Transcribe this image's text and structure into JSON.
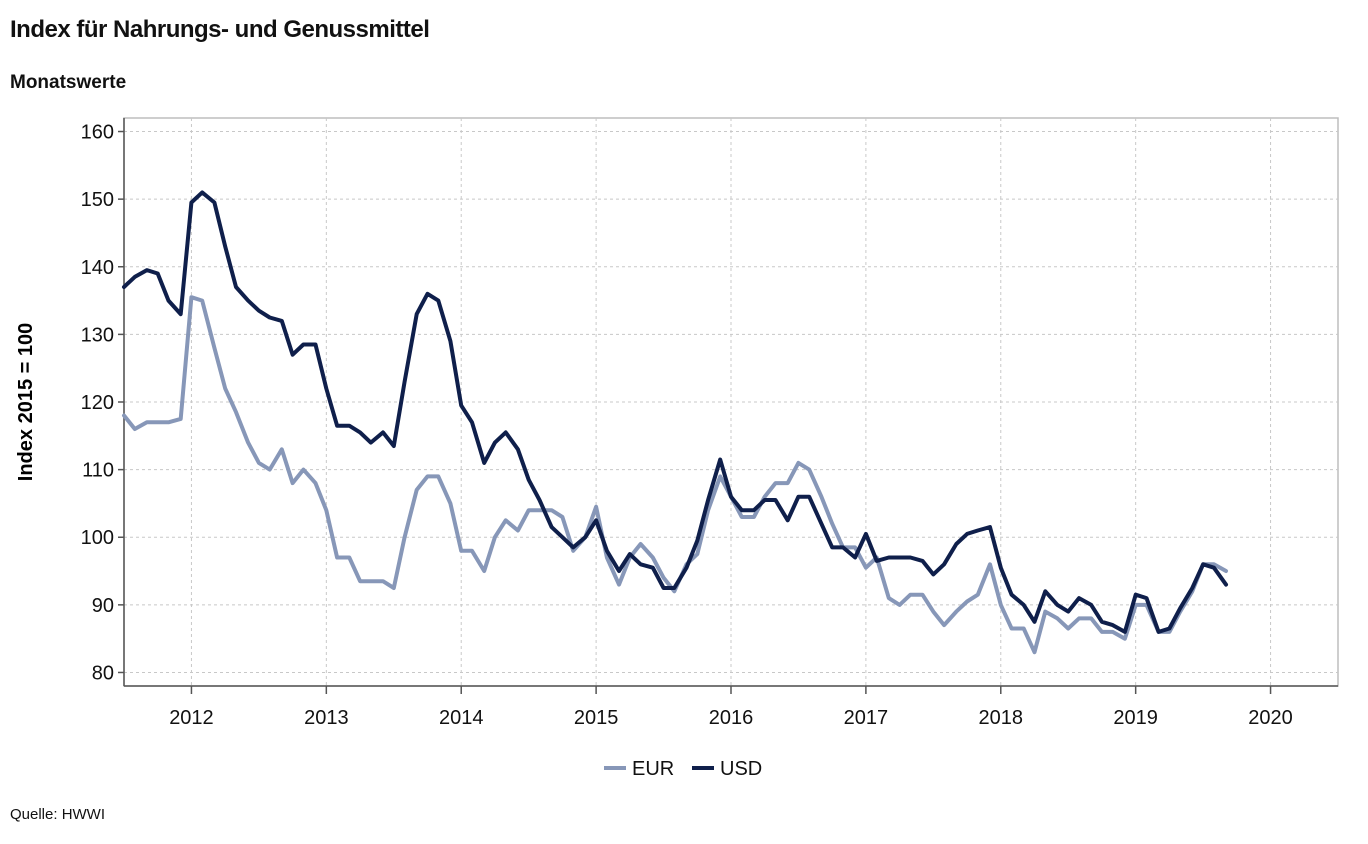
{
  "title": "Index für Nahrungs- und Genussmittel",
  "subtitle": "Monatswerte",
  "source": "Quelle: HWWI",
  "chart_data": {
    "type": "line",
    "ylabel": "Index 2015 = 100",
    "ylim": [
      78,
      162
    ],
    "yticks": [
      80,
      90,
      100,
      110,
      120,
      130,
      140,
      150,
      160
    ],
    "xlim": [
      2011.5,
      2020.5
    ],
    "xtick_labels": [
      "2012",
      "2013",
      "2014",
      "2015",
      "2016",
      "2017",
      "2018",
      "2019",
      "2020"
    ],
    "grid": true,
    "legend": "bottom-center",
    "series": [
      {
        "name": "EUR",
        "color": "#8797b8",
        "x": [
          2011.5,
          2011.58,
          2011.67,
          2011.75,
          2011.83,
          2011.92,
          2012.0,
          2012.08,
          2012.17,
          2012.25,
          2012.33,
          2012.42,
          2012.5,
          2012.58,
          2012.67,
          2012.75,
          2012.83,
          2012.92,
          2013.0,
          2013.08,
          2013.17,
          2013.25,
          2013.33,
          2013.42,
          2013.5,
          2013.58,
          2013.67,
          2013.75,
          2013.83,
          2013.92,
          2014.0,
          2014.08,
          2014.17,
          2014.25,
          2014.33,
          2014.42,
          2014.5,
          2014.58,
          2014.67,
          2014.75,
          2014.83,
          2014.92,
          2015.0,
          2015.08,
          2015.17,
          2015.25,
          2015.33,
          2015.42,
          2015.5,
          2015.58,
          2015.67,
          2015.75,
          2015.83,
          2015.92,
          2016.0,
          2016.08,
          2016.17,
          2016.25,
          2016.33,
          2016.42,
          2016.5,
          2016.58,
          2016.67,
          2016.75,
          2016.83,
          2016.92,
          2017.0,
          2017.08,
          2017.17,
          2017.25,
          2017.33,
          2017.42,
          2017.5,
          2017.58,
          2017.67,
          2017.75,
          2017.83,
          2017.92,
          2018.0,
          2018.08,
          2018.17,
          2018.25,
          2018.33,
          2018.42,
          2018.5,
          2018.58,
          2018.67,
          2018.75,
          2018.83,
          2018.92,
          2019.0,
          2019.08,
          2019.17,
          2019.25,
          2019.33,
          2019.42,
          2019.5,
          2019.58,
          2019.67
        ],
        "values": [
          118,
          116,
          117,
          117,
          117,
          117.5,
          135.5,
          135,
          128,
          122,
          118.5,
          114,
          111,
          110,
          113,
          108,
          110,
          108,
          104,
          97,
          97,
          93.5,
          93.5,
          93.5,
          92.5,
          100,
          107,
          109,
          109,
          105,
          98,
          98,
          95,
          100,
          102.5,
          101,
          104,
          104,
          104,
          103,
          98,
          100,
          104.5,
          97,
          93,
          97,
          99,
          97,
          94,
          92,
          96,
          97.5,
          104,
          109,
          106,
          103,
          103,
          106,
          108,
          108,
          111,
          110,
          106,
          102,
          98.5,
          98.5,
          95.5,
          97,
          91,
          90,
          91.5,
          91.5,
          89,
          87,
          89,
          90.5,
          91.5,
          96,
          90,
          86.5,
          86.5,
          83,
          89,
          88,
          86.5,
          88,
          88,
          86,
          86,
          85,
          90,
          90,
          86,
          86,
          89,
          92,
          96,
          96,
          95
        ]
      },
      {
        "name": "USD",
        "color": "#0f1f4b",
        "x": [
          2011.5,
          2011.58,
          2011.67,
          2011.75,
          2011.83,
          2011.92,
          2012.0,
          2012.08,
          2012.17,
          2012.25,
          2012.33,
          2012.42,
          2012.5,
          2012.58,
          2012.67,
          2012.75,
          2012.83,
          2012.92,
          2013.0,
          2013.08,
          2013.17,
          2013.25,
          2013.33,
          2013.42,
          2013.5,
          2013.58,
          2013.67,
          2013.75,
          2013.83,
          2013.92,
          2014.0,
          2014.08,
          2014.17,
          2014.25,
          2014.33,
          2014.42,
          2014.5,
          2014.58,
          2014.67,
          2014.75,
          2014.83,
          2014.92,
          2015.0,
          2015.08,
          2015.17,
          2015.25,
          2015.33,
          2015.42,
          2015.5,
          2015.58,
          2015.67,
          2015.75,
          2015.83,
          2015.92,
          2016.0,
          2016.08,
          2016.17,
          2016.25,
          2016.33,
          2016.42,
          2016.5,
          2016.58,
          2016.67,
          2016.75,
          2016.83,
          2016.92,
          2017.0,
          2017.08,
          2017.17,
          2017.25,
          2017.33,
          2017.42,
          2017.5,
          2017.58,
          2017.67,
          2017.75,
          2017.83,
          2017.92,
          2018.0,
          2018.08,
          2018.17,
          2018.25,
          2018.33,
          2018.42,
          2018.5,
          2018.58,
          2018.67,
          2018.75,
          2018.83,
          2018.92,
          2019.0,
          2019.08,
          2019.17,
          2019.25,
          2019.33,
          2019.42,
          2019.5,
          2019.58,
          2019.67
        ],
        "values": [
          137,
          138.5,
          139.5,
          139,
          135,
          133,
          149.5,
          151,
          149.5,
          143,
          137,
          135,
          133.5,
          132.5,
          132,
          127,
          128.5,
          128.5,
          122,
          116.5,
          116.5,
          115.5,
          114,
          115.5,
          113.5,
          123,
          133,
          136,
          135,
          129,
          119.5,
          117,
          111,
          114,
          115.5,
          113,
          108.5,
          105.5,
          101.5,
          100,
          98.5,
          100,
          102.5,
          98,
          95,
          97.5,
          96,
          95.5,
          92.5,
          92.5,
          95.5,
          99.5,
          105.5,
          111.5,
          106,
          104,
          104,
          105.5,
          105.5,
          102.5,
          106,
          106,
          102,
          98.5,
          98.5,
          97,
          100.5,
          96.5,
          97,
          97,
          97,
          96.5,
          94.5,
          96,
          99,
          100.5,
          101,
          101.5,
          95.5,
          91.5,
          90,
          87.5,
          92,
          90,
          89,
          91,
          90,
          87.5,
          87,
          86,
          91.5,
          91,
          86,
          86.5,
          89.5,
          92.5,
          96,
          95.5,
          93
        ]
      }
    ]
  }
}
